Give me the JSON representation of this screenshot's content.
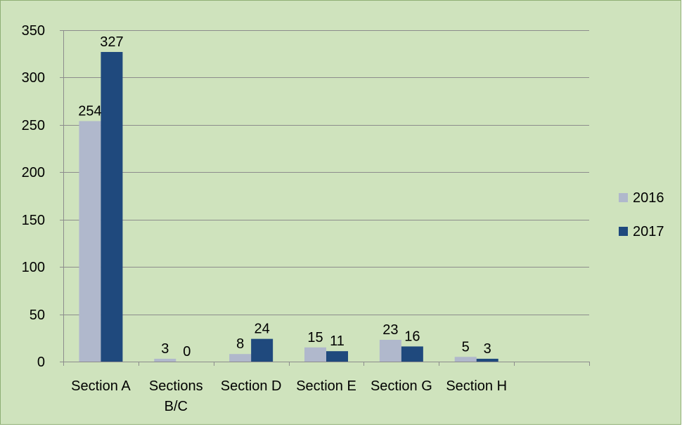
{
  "chart_data": {
    "type": "bar",
    "categories": [
      "Section A",
      "Sections B/C",
      "Section D",
      "Section E",
      "Section G",
      "Section H",
      ""
    ],
    "series": [
      {
        "name": "2016",
        "values": [
          254,
          3,
          8,
          15,
          23,
          5,
          null
        ]
      },
      {
        "name": "2017",
        "values": [
          327,
          0,
          24,
          11,
          16,
          3,
          null
        ]
      }
    ],
    "data_labels": [
      [
        "254",
        "3",
        "8",
        "15",
        "23",
        "5"
      ],
      [
        "327",
        "0",
        "24",
        "11",
        "16",
        "3"
      ]
    ],
    "ylim": [
      0,
      350
    ],
    "yticks": [
      0,
      50,
      100,
      150,
      200,
      250,
      300,
      350
    ],
    "grid": true,
    "legend_position": "right",
    "colors": {
      "background": "#cfe3bd",
      "border": "#8faf75",
      "gridline": "#8c8c8c",
      "axis": "#8c8c8c",
      "series": [
        "#b0b8cc",
        "#1f497d"
      ]
    }
  }
}
